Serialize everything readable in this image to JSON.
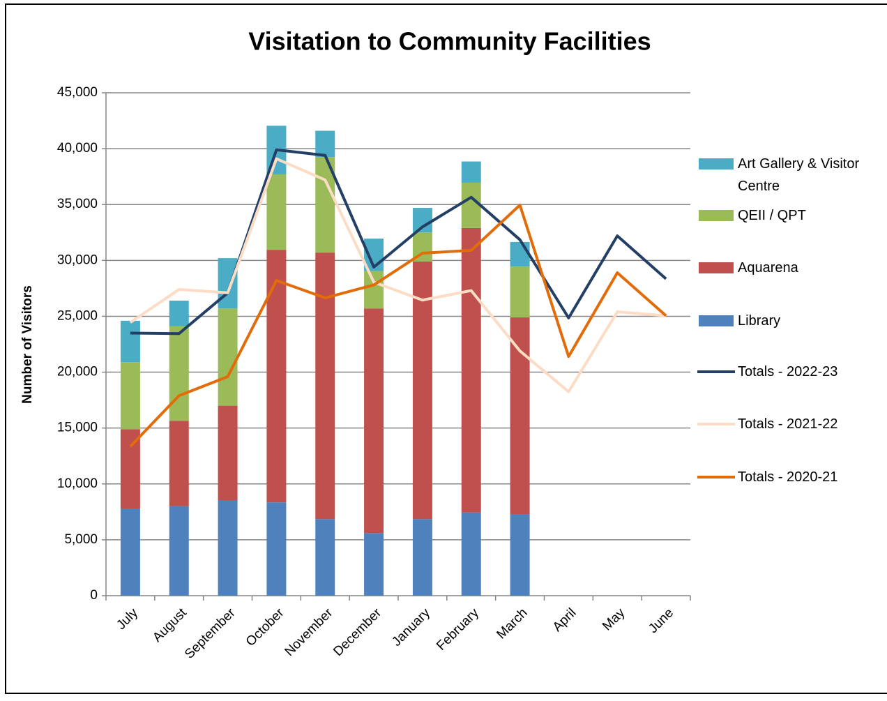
{
  "chart_data": {
    "type": "bar",
    "title": "Visitation to Community Facilities",
    "y_label": "Number of Visitors",
    "categories": [
      "July",
      "August",
      "September",
      "October",
      "November",
      "December",
      "January",
      "February",
      "March",
      "April",
      "May",
      "June"
    ],
    "series": [
      {
        "name": "Library",
        "type": "bar",
        "color": "#4f81bd",
        "values": [
          7800,
          8050,
          8550,
          8350,
          6850,
          5600,
          6850,
          7450,
          7300,
          null,
          null,
          null
        ]
      },
      {
        "name": "Aquarena",
        "type": "bar",
        "color": "#c0504d",
        "values": [
          7100,
          7600,
          8450,
          22600,
          23850,
          20100,
          23050,
          25450,
          17600,
          null,
          null,
          null
        ]
      },
      {
        "name": "QEII / QPT",
        "type": "bar",
        "color": "#9bbb59",
        "values": [
          6000,
          8450,
          8700,
          6750,
          8550,
          3350,
          2600,
          4050,
          4550,
          null,
          null,
          null
        ]
      },
      {
        "name": "Art Gallery & Visitor Centre",
        "type": "bar",
        "color": "#4bacc6",
        "values": [
          3700,
          2300,
          4500,
          4350,
          2350,
          2900,
          2200,
          1900,
          2200,
          null,
          null,
          null
        ]
      },
      {
        "name": "Totals - 2022-23",
        "type": "line",
        "color": "#243f66",
        "values": [
          23500,
          23450,
          27100,
          39900,
          39400,
          29400,
          33000,
          35650,
          31850,
          24850,
          32200,
          28350
        ]
      },
      {
        "name": "Totals - 2021-22",
        "type": "line",
        "color": "#fcdcc4",
        "values": [
          24450,
          27400,
          27100,
          39100,
          37200,
          28050,
          26450,
          27300,
          21900,
          18250,
          25400,
          25050
        ]
      },
      {
        "name": "Totals - 2020-21",
        "type": "line",
        "color": "#e36c0a",
        "values": [
          13350,
          17900,
          19600,
          28200,
          26650,
          27800,
          30650,
          30900,
          34950,
          21400,
          28900,
          25050
        ]
      }
    ],
    "ylim": [
      0,
      45000
    ],
    "yticks": [
      0,
      {
        "value": 5000,
        "label": "5,000"
      },
      {
        "value": 10000,
        "label": "10,000"
      },
      {
        "value": 15000,
        "label": "15,000"
      },
      {
        "value": 20000,
        "label": "20,000"
      },
      {
        "value": 25000,
        "label": "25,000"
      },
      {
        "value": 30000,
        "label": "30,000"
      },
      {
        "value": 35000,
        "label": "35,000"
      },
      {
        "value": 40000,
        "label": "40,000"
      },
      {
        "value": 45000,
        "label": "45,000"
      }
    ],
    "grid": true,
    "legend": "right"
  }
}
